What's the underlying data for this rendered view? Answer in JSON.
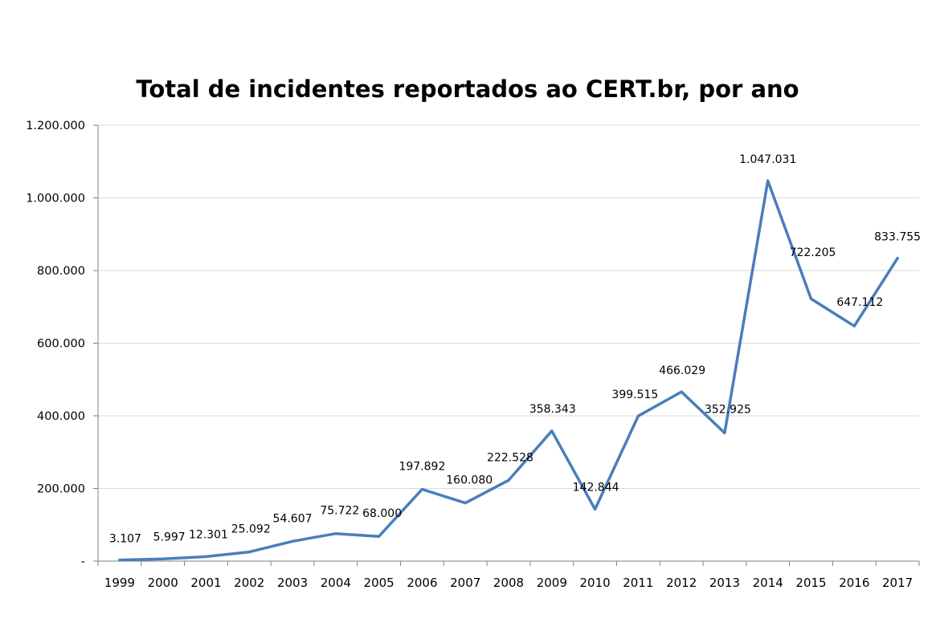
{
  "chart_data": {
    "type": "line",
    "title": "Total de incidentes reportados ao CERT.br, por ano",
    "xlabel": "",
    "ylabel": "",
    "ylim": [
      0,
      1200000
    ],
    "grid": true,
    "legend": "none",
    "line_color": "#4a7ebb",
    "grid_color": "#d9d9d9",
    "y_ticks": [
      {
        "value": 0,
        "label": "-"
      },
      {
        "value": 200000,
        "label": "200.000"
      },
      {
        "value": 400000,
        "label": "400.000"
      },
      {
        "value": 600000,
        "label": "600.000"
      },
      {
        "value": 800000,
        "label": "800.000"
      },
      {
        "value": 1000000,
        "label": "1.000.000"
      },
      {
        "value": 1200000,
        "label": "1.200.000"
      }
    ],
    "categories": [
      "1999",
      "2000",
      "2001",
      "2002",
      "2003",
      "2004",
      "2005",
      "2006",
      "2007",
      "2008",
      "2009",
      "2010",
      "2011",
      "2012",
      "2013",
      "2014",
      "2015",
      "2016",
      "2017"
    ],
    "values": [
      3107,
      5997,
      12301,
      25092,
      54607,
      75722,
      68000,
      197892,
      160080,
      222528,
      358343,
      142844,
      399515,
      466029,
      352925,
      1047031,
      722205,
      647112,
      833755
    ],
    "data_labels": [
      "3.107",
      "5.997",
      "12.301",
      "25.092",
      "54.607",
      "75.722",
      "68.000",
      "197.892",
      "160.080",
      "222.528",
      "358.343",
      "142.844",
      "399.515",
      "466.029",
      "352.925",
      "1.047.031",
      "722.205",
      "647.112",
      "833.755"
    ]
  }
}
